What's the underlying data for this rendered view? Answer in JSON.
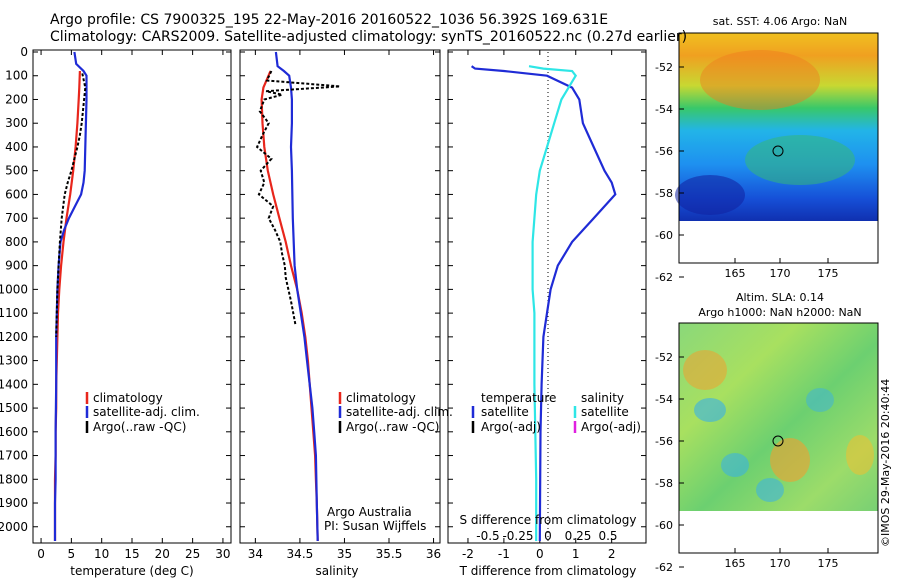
{
  "header": {
    "line1": "Argo profile: CS 7900325_195 22-May-2016 20160522_1036 56.392S 169.631E",
    "line2": "Climatology: CARS2009. Satellite-adjusted climatology: synTS_20160522.nc (0.27d earlier)"
  },
  "colors": {
    "climatology": "#e8261c",
    "satellite": "#1f2bd6",
    "argo": "#000000",
    "satellite_salinity": "#2ee6e6",
    "argo_salinity_adj": "#e020e0"
  },
  "panels": {
    "temperature": {
      "xlabel": "temperature (deg C)",
      "xticks": [
        "0",
        "5",
        "10",
        "15",
        "20",
        "25",
        "30"
      ],
      "legend": [
        "climatology",
        "satellite-adj. clim.",
        "Argo(..raw -QC)"
      ]
    },
    "salinity": {
      "xlabel": "salinity",
      "xticks": [
        "34",
        "34.5",
        "35",
        "35.5",
        "36"
      ],
      "legend": [
        "climatology",
        "satellite-adj. clim.",
        "Argo(..raw -QC)"
      ],
      "note1": "Argo Australia",
      "note2": "PI: Susan Wijffels"
    },
    "difference": {
      "xlabel": "T difference from climatology",
      "xticks": [
        "-2",
        "-1",
        "0",
        "1",
        "2"
      ],
      "top_label": "S difference from climatology",
      "top_ticks": [
        "-0.5",
        "-0.25",
        "0",
        "0.25",
        "0.5"
      ],
      "legend_temperature": {
        "title": "temperature",
        "satellite": "satellite",
        "argo": "Argo(-adj)"
      },
      "legend_salinity": {
        "title": "salinity",
        "satellite": "satellite",
        "argo": "Argo(-adj)"
      }
    },
    "yticks": [
      "0",
      "100",
      "200",
      "300",
      "400",
      "500",
      "600",
      "700",
      "800",
      "900",
      "1000",
      "1100",
      "1200",
      "1300",
      "1400",
      "1500",
      "1600",
      "1700",
      "1800",
      "1900",
      "2000"
    ]
  },
  "maps": {
    "sst_title": "sat. SST: 4.06  Argo: NaN",
    "sla_title_1": "Altim. SLA: 0.14",
    "sla_title_2": "Argo h1000: NaN h2000: NaN",
    "lat_ticks": [
      "-52",
      "-54",
      "-56",
      "-58",
      "-60",
      "-62"
    ],
    "lon_ticks": [
      "165",
      "170",
      "175"
    ]
  },
  "credit": "©IMOS 29-May-2016 20:40:44",
  "chart_data": [
    {
      "type": "line",
      "title": "",
      "xlabel": "temperature (deg C)",
      "ylabel": "",
      "xlim": [
        -1,
        31
      ],
      "ylim": [
        2060,
        0
      ],
      "series": [
        {
          "name": "climatology",
          "x": [
            6.4,
            6.3,
            6.2,
            6.0,
            5.7,
            5.3,
            4.8,
            4.2,
            3.7,
            3.3,
            3.0,
            2.8,
            2.7,
            2.6,
            2.5,
            2.5,
            2.4,
            2.4,
            2.3,
            2.3,
            2.3
          ],
          "y": [
            80,
            150,
            200,
            300,
            400,
            500,
            600,
            700,
            800,
            900,
            1000,
            1100,
            1200,
            1300,
            1400,
            1500,
            1600,
            1700,
            1800,
            1900,
            2060
          ]
        },
        {
          "name": "satellite-adj. clim.",
          "x": [
            5.5,
            5.8,
            7.0,
            7.5,
            7.5,
            7.5,
            7.4,
            7.3,
            7.2,
            7.0,
            6.6,
            5.6,
            4.6,
            3.8,
            3.2,
            2.9,
            2.7,
            2.6,
            2.5,
            2.5,
            2.4,
            2.4,
            2.3,
            2.3
          ],
          "y": [
            0,
            50,
            80,
            100,
            150,
            200,
            300,
            400,
            500,
            550,
            600,
            650,
            700,
            750,
            800,
            900,
            1000,
            1100,
            1200,
            1400,
            1600,
            1800,
            1900,
            2060
          ]
        },
        {
          "name": "Argo(..raw -QC)",
          "x": [
            6.8,
            7.3,
            7.1,
            6.9,
            6.7,
            6.4,
            6.0,
            5.5,
            5.0,
            4.4,
            3.9,
            3.4,
            3.1,
            2.9,
            2.7,
            2.6,
            2.5
          ],
          "y": [
            90,
            150,
            200,
            250,
            300,
            350,
            400,
            450,
            500,
            550,
            600,
            700,
            800,
            900,
            1000,
            1100,
            1200
          ]
        }
      ]
    },
    {
      "type": "line",
      "title": "",
      "xlabel": "salinity",
      "ylabel": "",
      "xlim": [
        33.85,
        36.05
      ],
      "ylim": [
        2060,
        0
      ],
      "series": [
        {
          "name": "climatology",
          "x": [
            34.17,
            34.09,
            34.07,
            34.08,
            34.1,
            34.14,
            34.2,
            34.27,
            34.34,
            34.4,
            34.47,
            34.52,
            34.56,
            34.59,
            34.61,
            34.63,
            34.65,
            34.67,
            34.68,
            34.69,
            34.7
          ],
          "y": [
            80,
            150,
            200,
            300,
            400,
            500,
            600,
            700,
            800,
            900,
            1000,
            1100,
            1200,
            1300,
            1400,
            1500,
            1600,
            1700,
            1800,
            1900,
            2060
          ]
        },
        {
          "name": "satellite-adj. clim.",
          "x": [
            34.23,
            34.25,
            34.32,
            34.38,
            34.4,
            34.41,
            34.41,
            34.4,
            34.41,
            34.42,
            34.44,
            34.47,
            34.51,
            34.55,
            34.58,
            34.61,
            34.64,
            34.66,
            34.68,
            34.69,
            34.7
          ],
          "y": [
            0,
            60,
            80,
            100,
            150,
            200,
            300,
            400,
            500,
            700,
            900,
            1000,
            1100,
            1200,
            1300,
            1400,
            1500,
            1600,
            1700,
            1900,
            2060
          ]
        },
        {
          "name": "Argo(..raw -QC)",
          "x": [
            34.18,
            34.13,
            34.95,
            34.12,
            34.3,
            34.1,
            34.05,
            34.15,
            34.08,
            34.02,
            34.18,
            34.06,
            34.1,
            34.04,
            34.2,
            34.15,
            34.22,
            34.28,
            34.3,
            34.33,
            34.34,
            34.4,
            34.45
          ],
          "y": [
            80,
            120,
            145,
            165,
            180,
            200,
            250,
            300,
            350,
            400,
            450,
            500,
            550,
            600,
            650,
            700,
            750,
            800,
            850,
            900,
            950,
            1050,
            1150
          ]
        }
      ]
    },
    {
      "type": "line",
      "title": "",
      "xlabel": "T difference from climatology",
      "ylabel": "",
      "xlim": [
        -2.5,
        2.9
      ],
      "ylim": [
        2060,
        0
      ],
      "series": [
        {
          "name": "temperature satellite",
          "x": [
            -1.9,
            -1.8,
            -1.0,
            0.2,
            0.9,
            1.1,
            1.2,
            1.5,
            1.8,
            2.0,
            2.1,
            1.5,
            0.9,
            0.5,
            0.3,
            0.2,
            0.1,
            0.05,
            0.02,
            0.0
          ],
          "y": [
            60,
            70,
            80,
            100,
            150,
            200,
            300,
            400,
            500,
            550,
            600,
            700,
            800,
            900,
            1000,
            1100,
            1200,
            1400,
            1600,
            2060
          ]
        },
        {
          "name": "salinity satellite",
          "x": [
            -0.3,
            0.1,
            0.9,
            1.0,
            0.8,
            0.6,
            0.4,
            0.2,
            0.0,
            -0.1,
            -0.15,
            -0.2,
            -0.2,
            -0.2,
            -0.15,
            -0.15,
            -0.1,
            -0.1
          ],
          "y": [
            60,
            70,
            80,
            100,
            150,
            200,
            300,
            400,
            500,
            600,
            700,
            800,
            900,
            1000,
            1100,
            1400,
            1800,
            2060
          ]
        }
      ]
    }
  ]
}
